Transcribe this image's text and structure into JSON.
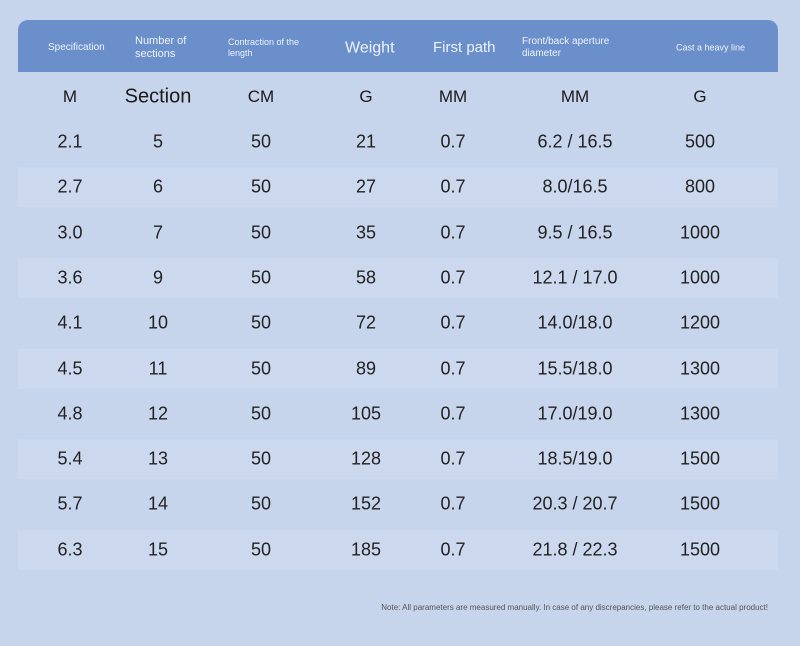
{
  "table": {
    "header": [
      "Specification",
      "Number of sections",
      "Contraction of the length",
      "Weight",
      "First path",
      "Front/back aperture diameter",
      "Cast a heavy line"
    ],
    "units": [
      "M",
      "Section",
      "CM",
      "G",
      "MM",
      "MM",
      "G"
    ],
    "rows": [
      [
        "2.1",
        "5",
        "50",
        "21",
        "0.7",
        "6.2 / 16.5",
        "500"
      ],
      [
        "2.7",
        "6",
        "50",
        "27",
        "0.7",
        "8.0/16.5",
        "800"
      ],
      [
        "3.0",
        "7",
        "50",
        "35",
        "0.7",
        "9.5 / 16.5",
        "1000"
      ],
      [
        "3.6",
        "9",
        "50",
        "58",
        "0.7",
        "12.1 / 17.0",
        "1000"
      ],
      [
        "4.1",
        "10",
        "50",
        "72",
        "0.7",
        "14.0/18.0",
        "1200"
      ],
      [
        "4.5",
        "11",
        "50",
        "89",
        "0.7",
        "15.5/18.0",
        "1300"
      ],
      [
        "4.8",
        "12",
        "50",
        "105",
        "0.7",
        "17.0/19.0",
        "1300"
      ],
      [
        "5.4",
        "13",
        "50",
        "128",
        "0.7",
        "18.5/19.0",
        "1500"
      ],
      [
        "5.7",
        "14",
        "50",
        "152",
        "0.7",
        "20.3 / 20.7",
        "1500"
      ],
      [
        "6.3",
        "15",
        "50",
        "185",
        "0.7",
        "21.8 / 22.3",
        "1500"
      ]
    ]
  },
  "note": "Note: All parameters are measured manually. In case of any discrepancies, please refer to the actual product!"
}
